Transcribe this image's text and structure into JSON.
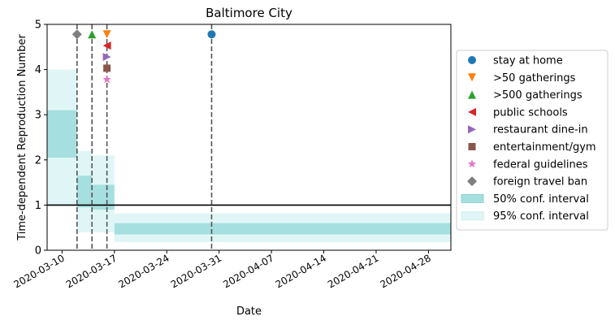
{
  "chart_data": {
    "type": "line",
    "title": "Baltimore City",
    "xlabel": "Date",
    "ylabel": "Time-dependent Reproduction Number",
    "xlim": [
      "2020-03-08",
      "2020-05-01"
    ],
    "ylim": [
      0,
      5
    ],
    "x_tick_labels": [
      "2020-03-10",
      "2020-03-17",
      "2020-03-24",
      "2020-03-31",
      "2020-04-07",
      "2020-04-14",
      "2020-04-21",
      "2020-04-28"
    ],
    "x_tick_dates": [
      "2020-03-10",
      "2020-03-17",
      "2020-03-24",
      "2020-03-31",
      "2020-04-07",
      "2020-04-14",
      "2020-04-21",
      "2020-04-28"
    ],
    "y_tick_labels": [
      "0",
      "1",
      "2",
      "3",
      "4",
      "5"
    ],
    "y_ticks": [
      0,
      1,
      2,
      3,
      4,
      5
    ],
    "reference_line": {
      "y": 1,
      "color": "#000000"
    },
    "event_lines": [
      "2020-03-12",
      "2020-03-14",
      "2020-03-16",
      "2020-03-30"
    ],
    "confidence_bands": [
      {
        "x_start": "2020-03-08",
        "x_end": "2020-03-12",
        "ci50": [
          2.05,
          3.1
        ],
        "ci95": [
          1.0,
          4.0
        ]
      },
      {
        "x_start": "2020-03-12",
        "x_end": "2020-03-14",
        "ci50": [
          0.95,
          1.65
        ],
        "ci95": [
          0.4,
          2.2
        ]
      },
      {
        "x_start": "2020-03-14",
        "x_end": "2020-03-17",
        "ci50": [
          0.9,
          1.45
        ],
        "ci95": [
          0.4,
          2.1
        ]
      },
      {
        "x_start": "2020-03-17",
        "x_end": "2020-05-01",
        "ci50": [
          0.35,
          0.6
        ],
        "ci95": [
          0.18,
          0.82
        ]
      }
    ],
    "events": [
      {
        "label": "stay at home",
        "date": "2020-03-30",
        "y": 4.78,
        "marker": "circle",
        "color": "#1f77b4"
      },
      {
        "label": ">50 gatherings",
        "date": "2020-03-16",
        "y": 4.78,
        "marker": "triangle-down",
        "color": "#ff7f0e"
      },
      {
        "label": ">500 gatherings",
        "date": "2020-03-14",
        "y": 4.78,
        "marker": "triangle-up",
        "color": "#2ca02c"
      },
      {
        "label": "public schools",
        "date": "2020-03-16",
        "y": 4.53,
        "marker": "triangle-left",
        "color": "#d62728"
      },
      {
        "label": "restaurant dine-in",
        "date": "2020-03-16",
        "y": 4.28,
        "marker": "triangle-right",
        "color": "#9467bd"
      },
      {
        "label": "entertainment/gym",
        "date": "2020-03-16",
        "y": 4.03,
        "marker": "square",
        "color": "#8c564b"
      },
      {
        "label": "federal guidelines",
        "date": "2020-03-16",
        "y": 3.78,
        "marker": "star",
        "color": "#e377c2"
      },
      {
        "label": "foreign travel ban",
        "date": "2020-03-12",
        "y": 4.78,
        "marker": "diamond",
        "color": "#7f7f7f"
      }
    ],
    "bands_legend": [
      {
        "label": "50% conf. interval",
        "color": "#a6dfdf"
      },
      {
        "label": "95% conf. interval",
        "color": "#e0f6f6"
      }
    ],
    "grid": false,
    "legend_position": "right"
  }
}
